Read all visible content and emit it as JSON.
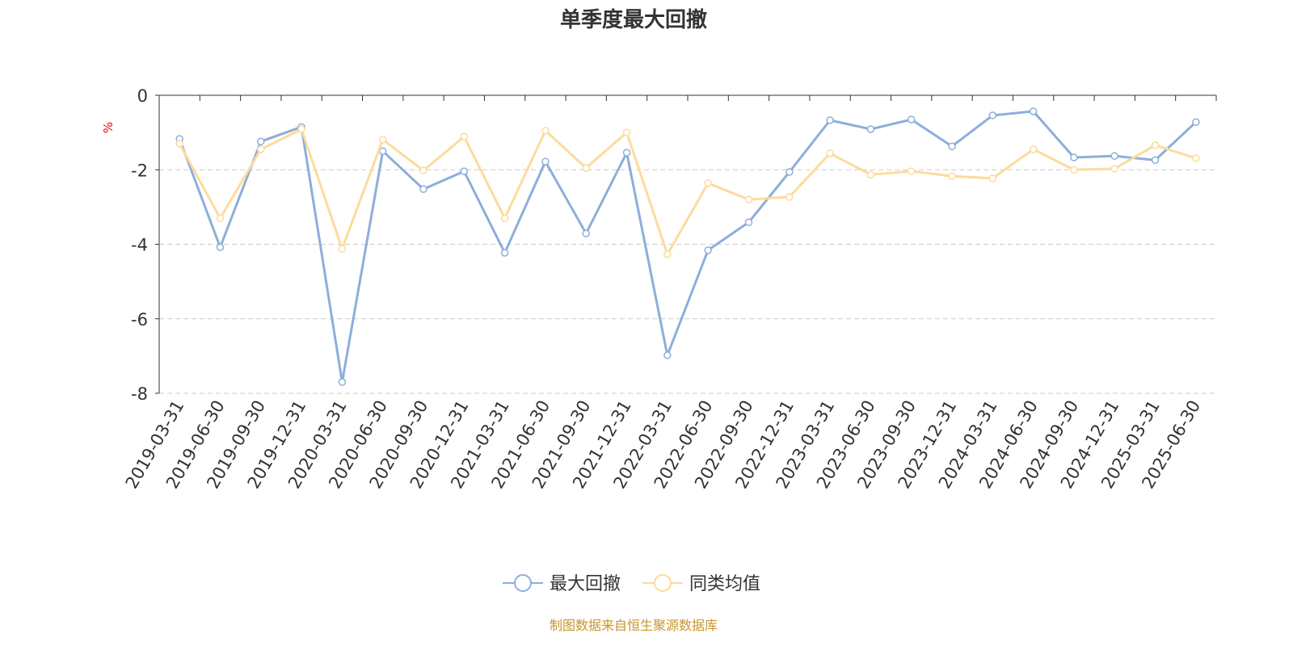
{
  "chart_data": {
    "type": "line",
    "title": "单季度最大回撤",
    "ylabel": "%",
    "xlabel": "",
    "ylim": [
      -8,
      0
    ],
    "yticks": [
      0,
      -2,
      -4,
      -6,
      -8
    ],
    "grid": true,
    "legend_position": "bottom-center",
    "categories": [
      "2019-03-31",
      "2019-06-30",
      "2019-09-30",
      "2019-12-31",
      "2020-03-31",
      "2020-06-30",
      "2020-09-30",
      "2020-12-31",
      "2021-03-31",
      "2021-06-30",
      "2021-09-30",
      "2021-12-31",
      "2022-03-31",
      "2022-06-30",
      "2022-09-30",
      "2022-12-31",
      "2023-03-31",
      "2023-06-30",
      "2023-09-30",
      "2023-12-31",
      "2024-03-31",
      "2024-06-30",
      "2024-09-30",
      "2024-12-31",
      "2025-03-31",
      "2025-06-30"
    ],
    "series": [
      {
        "name": "最大回撤",
        "color": "#8EAEDB",
        "values": [
          -1.17,
          -4.08,
          -1.24,
          -0.85,
          -7.7,
          -1.5,
          -2.52,
          -2.04,
          -4.23,
          -1.78,
          -3.71,
          -1.54,
          -6.98,
          -4.16,
          -3.41,
          -2.06,
          -0.67,
          -0.91,
          -0.65,
          -1.37,
          -0.54,
          -0.43,
          -1.67,
          -1.63,
          -1.74,
          -0.72
        ]
      },
      {
        "name": "同类均值",
        "color": "#FDDB9C",
        "values": [
          -1.3,
          -3.3,
          -1.45,
          -0.91,
          -4.12,
          -1.19,
          -2.02,
          -1.11,
          -3.3,
          -0.95,
          -1.95,
          -1.0,
          -4.27,
          -2.36,
          -2.8,
          -2.73,
          -1.56,
          -2.13,
          -2.04,
          -2.17,
          -2.23,
          -1.45,
          -2.0,
          -1.97,
          -1.34,
          -1.69
        ]
      }
    ],
    "source": "制图数据来自恒生聚源数据库",
    "source_color": "#C8962A"
  }
}
